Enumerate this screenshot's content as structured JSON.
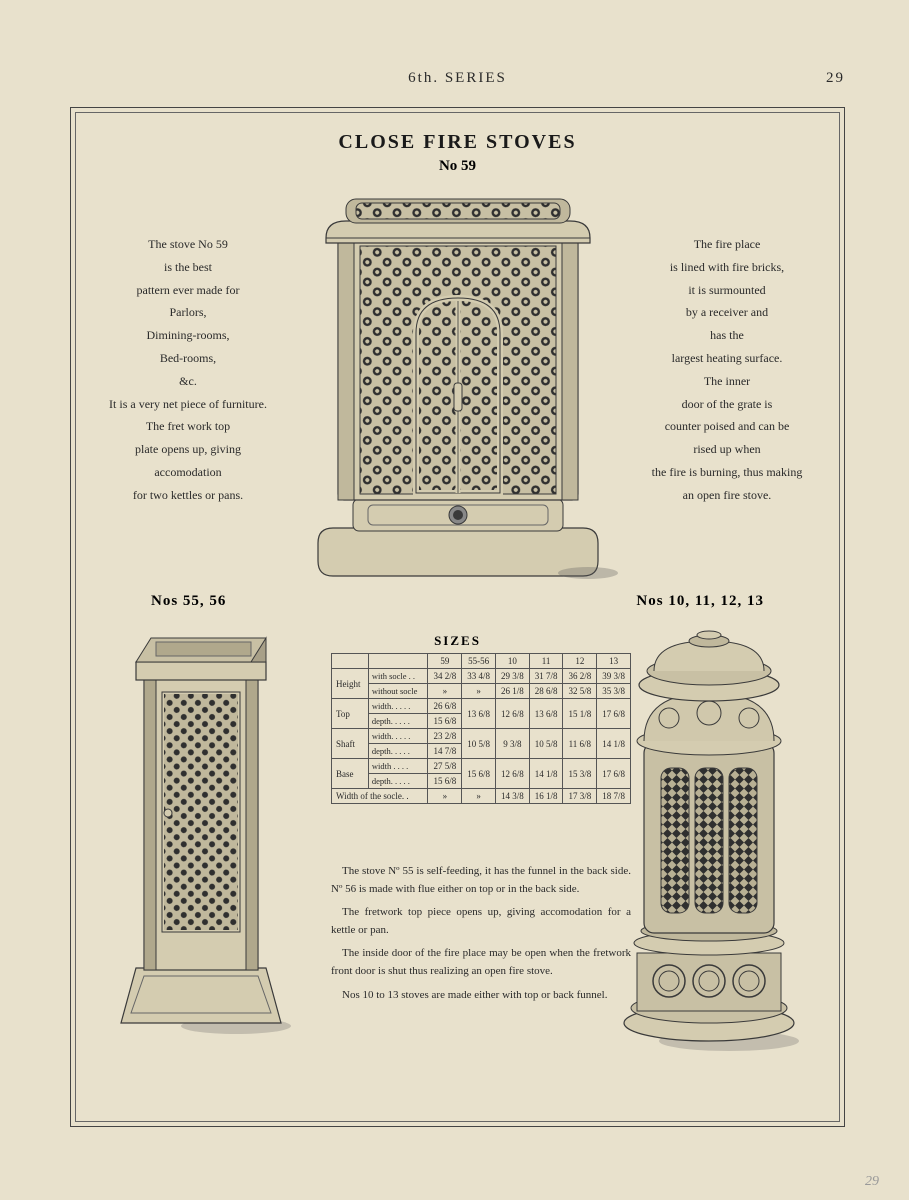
{
  "header": {
    "series": "6th. SERIES",
    "page": "29"
  },
  "title": {
    "main": "CLOSE FIRE STOVES",
    "no": "No 59"
  },
  "left_desc": "The stove No 59\nis the best\npattern ever made for\nParlors,\nDimining-rooms,\nBed-rooms,\n&c.\nIt is a very net piece of furniture.\nThe fret work top\nplate opens up, giving\naccomodation\nfor two kettles or pans.",
  "right_desc": "The fire place\nis lined with fire bricks,\nit is surmounted\nby a receiver and\nhas the\nlargest heating surface.\nThe inner\ndoor of the grate is\ncounter poised and can be\nrised up when\nthe fire is burning, thus making\nan open fire stove.",
  "labels": {
    "left": "Nos 55, 56",
    "right": "Nos 10, 11, 12, 13"
  },
  "sizes": {
    "title": "SIZES",
    "cols": [
      "",
      "",
      "59",
      "55-56",
      "10",
      "11",
      "12",
      "13"
    ],
    "rows": [
      {
        "g": "Height",
        "s": "with socle . .",
        "v": [
          "34 2/8",
          "33 4/8",
          "29 3/8",
          "31 7/8",
          "36 2/8",
          "39 3/8"
        ]
      },
      {
        "g": "",
        "s": "without socle",
        "v": [
          "»",
          "»",
          "26 1/8",
          "28 6/8",
          "32 5/8",
          "35 3/8"
        ]
      },
      {
        "g": "Top",
        "s": "width. . . . .",
        "v": [
          "26 6/8",
          "13 6/8",
          "12 6/8",
          "13 6/8",
          "15 1/8",
          "17 6/8"
        ]
      },
      {
        "g": "",
        "s": "depth. . . . .",
        "v": [
          "15 6/8",
          "",
          "",
          "",
          "",
          ""
        ]
      },
      {
        "g": "Shaft",
        "s": "width. . . . .",
        "v": [
          "23 2/8",
          "10 5/8",
          "9 3/8",
          "10 5/8",
          "11 6/8",
          "14 1/8"
        ]
      },
      {
        "g": "",
        "s": "depth. . . . .",
        "v": [
          "14 7/8",
          "",
          "",
          "",
          "",
          ""
        ]
      },
      {
        "g": "Base",
        "s": "width . . . .",
        "v": [
          "27 5/8",
          "15 6/8",
          "12 6/8",
          "14 1/8",
          "15 3/8",
          "17 6/8"
        ]
      },
      {
        "g": "",
        "s": "depth. . . . .",
        "v": [
          "15 6/8",
          "",
          "",
          "",
          "",
          ""
        ]
      },
      {
        "g": "Width of the socle. .",
        "s": "",
        "v": [
          "»",
          "»",
          "14 3/8",
          "16 1/8",
          "17 3/8",
          "18 7/8"
        ]
      }
    ]
  },
  "bottom": {
    "p1": "The stove Nº 55 is self-feeding, it has the funnel in the back side. Nº 56 is made with flue either on top or in the back side.",
    "p2": "The fretwork top piece opens up, giving accomodation for a kettle or pan.",
    "p3": "The inside door of the fire place may be open when the fretwork front door is shut thus realizing an open fire stove.",
    "p4": "Nos 10 to 13 stoves are made either with top or back funnel."
  },
  "pencil": "29",
  "colors": {
    "paper": "#e8e1cc",
    "ink": "#2a2a2a",
    "stove_light": "#d4ccb0",
    "stove_mid": "#a8a088",
    "stove_dark": "#4a4a42",
    "lattice": "#2f2f2f"
  }
}
